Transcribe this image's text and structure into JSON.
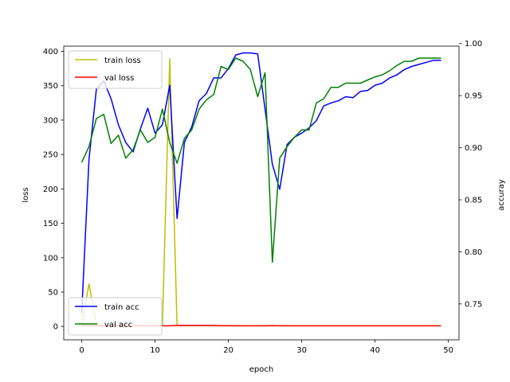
{
  "chart_data": {
    "type": "line",
    "xlabel": "epoch",
    "ylabel_left": "loss",
    "ylabel_right": "accuray",
    "x_ticks": [
      0,
      10,
      20,
      30,
      40,
      50
    ],
    "x_tick_labels": [
      "0",
      "10",
      "20",
      "30",
      "40",
      "50"
    ],
    "xlim": [
      -2.45,
      51.45
    ],
    "left_axis": {
      "ylim": [
        -19.4,
        407.5
      ],
      "ticks": [
        0,
        50,
        100,
        150,
        200,
        250,
        300,
        350,
        400
      ],
      "tick_labels": [
        "0",
        "50",
        "100",
        "150",
        "200",
        "250",
        "300",
        "350",
        "400"
      ]
    },
    "right_axis": {
      "ylim": [
        0.7155,
        0.9975
      ],
      "ticks": [
        0.75,
        0.8,
        0.85,
        0.9,
        0.95,
        1.0
      ],
      "tick_labels": [
        "0.75",
        "0.80",
        "0.85",
        "0.90",
        "0.95",
        "1.00"
      ]
    },
    "series": [
      {
        "name": "train loss",
        "axis": "left",
        "color": "#bfbf00",
        "x": [
          0,
          1,
          2,
          3,
          4,
          5,
          6,
          7,
          8,
          9,
          10,
          11,
          12,
          13,
          14,
          15,
          16,
          17,
          18,
          19,
          20,
          21,
          22,
          23,
          24,
          25,
          26,
          27,
          28,
          29,
          30,
          31,
          32,
          33,
          34,
          35,
          36,
          37,
          38,
          39,
          40,
          41,
          42,
          43,
          44,
          45,
          46,
          47,
          48,
          49
        ],
        "y": [
          1,
          62,
          4,
          1,
          1,
          1,
          1,
          1,
          1,
          1,
          1,
          1,
          389,
          1,
          1,
          1,
          1,
          1,
          1,
          1,
          1,
          1,
          1,
          1,
          1,
          1,
          1,
          1,
          1,
          1,
          1,
          1,
          1,
          1,
          1,
          1,
          1,
          1,
          1,
          1,
          1,
          1,
          1,
          1,
          1,
          1,
          1,
          1,
          1,
          1
        ]
      },
      {
        "name": "val loss",
        "axis": "left",
        "color": "#ff0000",
        "x": [
          0,
          1,
          2,
          3,
          4,
          5,
          6,
          7,
          8,
          9,
          10,
          11,
          12,
          13,
          14,
          15,
          16,
          17,
          18,
          19,
          20,
          21,
          22,
          23,
          24,
          25,
          26,
          27,
          28,
          29,
          30,
          31,
          32,
          33,
          34,
          35,
          36,
          37,
          38,
          39,
          40,
          41,
          42,
          43,
          44,
          45,
          46,
          47,
          48,
          49
        ],
        "y": [
          1,
          1,
          1,
          1,
          1,
          1,
          1,
          1,
          1,
          1,
          1,
          1,
          1,
          1.5,
          1.5,
          1.5,
          1.5,
          1.5,
          1.5,
          1.2,
          1.2,
          1,
          1,
          1,
          1,
          1,
          1.3,
          1,
          1,
          1,
          1,
          1,
          1,
          1,
          1,
          1,
          1,
          1,
          1,
          1,
          1,
          1,
          1,
          1,
          1,
          1,
          1,
          1,
          1,
          1
        ]
      },
      {
        "name": "train acc",
        "axis": "right",
        "color": "#0000ff",
        "x": [
          0,
          1,
          2,
          3,
          4,
          5,
          6,
          7,
          8,
          9,
          10,
          11,
          12,
          13,
          14,
          15,
          16,
          17,
          18,
          19,
          20,
          21,
          22,
          23,
          24,
          25,
          26,
          27,
          28,
          29,
          30,
          31,
          32,
          33,
          34,
          35,
          36,
          37,
          38,
          39,
          40,
          41,
          42,
          43,
          44,
          45,
          46,
          47,
          48,
          49
        ],
        "y": [
          0.741,
          0.889,
          0.956,
          0.964,
          0.947,
          0.922,
          0.905,
          0.896,
          0.918,
          0.938,
          0.914,
          0.922,
          0.96,
          0.832,
          0.905,
          0.92,
          0.945,
          0.952,
          0.967,
          0.967,
          0.976,
          0.989,
          0.991,
          0.991,
          0.99,
          0.937,
          0.884,
          0.86,
          0.903,
          0.91,
          0.914,
          0.919,
          0.926,
          0.94,
          0.943,
          0.945,
          0.949,
          0.948,
          0.954,
          0.955,
          0.96,
          0.962,
          0.967,
          0.97,
          0.975,
          0.978,
          0.98,
          0.982,
          0.984,
          0.984
        ]
      },
      {
        "name": "val acc",
        "axis": "right",
        "color": "#008000",
        "x": [
          0,
          1,
          2,
          3,
          4,
          5,
          6,
          7,
          8,
          9,
          10,
          11,
          12,
          13,
          14,
          15,
          16,
          17,
          18,
          19,
          20,
          21,
          22,
          23,
          24,
          25,
          26,
          27,
          28,
          29,
          30,
          31,
          32,
          33,
          34,
          35,
          36,
          37,
          38,
          39,
          40,
          41,
          42,
          43,
          44,
          45,
          46,
          47,
          48,
          49
        ],
        "y": [
          0.886,
          0.901,
          0.928,
          0.932,
          0.904,
          0.912,
          0.89,
          0.898,
          0.917,
          0.905,
          0.91,
          0.937,
          0.905,
          0.885,
          0.909,
          0.917,
          0.937,
          0.946,
          0.951,
          0.978,
          0.975,
          0.986,
          0.983,
          0.975,
          0.949,
          0.972,
          0.79,
          0.89,
          0.901,
          0.91,
          0.917,
          0.917,
          0.943,
          0.947,
          0.958,
          0.958,
          0.962,
          0.962,
          0.962,
          0.965,
          0.968,
          0.97,
          0.974,
          0.979,
          0.983,
          0.983,
          0.986,
          0.986,
          0.986,
          0.986
        ]
      }
    ],
    "legends": [
      {
        "position": "upper-left",
        "entries": [
          "train loss",
          "val loss"
        ]
      },
      {
        "position": "lower-left",
        "entries": [
          "train acc",
          "val acc"
        ]
      }
    ]
  }
}
